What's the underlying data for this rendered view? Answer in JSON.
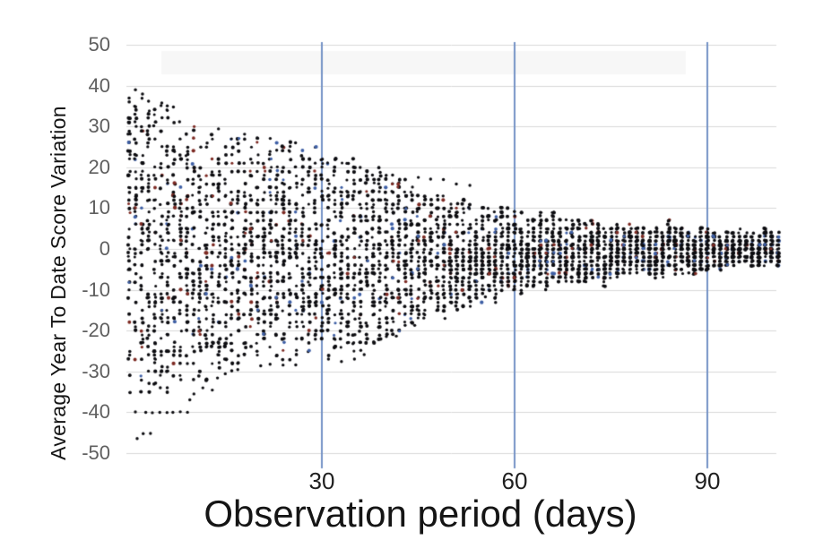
{
  "chart_data": {
    "type": "scatter",
    "title": "",
    "xlabel": "Observation period (days)",
    "ylabel": "Average Year To Date Score Variation",
    "xlim": [
      0,
      101
    ],
    "ylim": [
      -50,
      50
    ],
    "x_ticks": [
      30,
      60,
      90
    ],
    "y_ticks": [
      50,
      40,
      30,
      20,
      10,
      0,
      -10,
      -20,
      -30,
      -40,
      -50
    ],
    "grid": "horizontal light-gray lines every 10 units; vertical blue lines at each x tick",
    "legend": "none",
    "description": "Dense funnel-shaped scatter: one vertical column of integer-valued points per observation day from day ~1 to ~101. Spread shrinks from roughly +39/-47 at the first days to about +4/-4 after 90 days.",
    "envelope": [
      {
        "day": 0,
        "top": 39,
        "bottom": -36.5
      },
      {
        "day": 4,
        "top": 35.5,
        "bottom": -35.5
      },
      {
        "day": 8,
        "top": 32,
        "bottom": -34
      },
      {
        "day": 12,
        "top": 29,
        "bottom": -31.5
      },
      {
        "day": 16,
        "top": 27.5,
        "bottom": -28.5
      },
      {
        "day": 20,
        "top": 26.5,
        "bottom": -26.5
      },
      {
        "day": 25,
        "top": 25.5,
        "bottom": -26
      },
      {
        "day": 30,
        "top": 24.5,
        "bottom": -25.5
      },
      {
        "day": 33,
        "top": 23,
        "bottom": -24
      },
      {
        "day": 36,
        "top": 21.5,
        "bottom": -24.5
      },
      {
        "day": 38,
        "top": 20,
        "bottom": -23
      },
      {
        "day": 40,
        "top": 19.5,
        "bottom": -21.5
      },
      {
        "day": 43,
        "top": 15.5,
        "bottom": -19.5
      },
      {
        "day": 46,
        "top": 14.5,
        "bottom": -18.5
      },
      {
        "day": 50,
        "top": 12.5,
        "bottom": -16.5
      },
      {
        "day": 54,
        "top": 11,
        "bottom": -13.5
      },
      {
        "day": 58,
        "top": 10,
        "bottom": -11.5
      },
      {
        "day": 62,
        "top": 9,
        "bottom": -10
      },
      {
        "day": 66,
        "top": 8.5,
        "bottom": -9.5
      },
      {
        "day": 70,
        "top": 7,
        "bottom": -8.5
      },
      {
        "day": 75,
        "top": 6.2,
        "bottom": -7.2
      },
      {
        "day": 80,
        "top": 5.5,
        "bottom": -6.5
      },
      {
        "day": 85,
        "top": 5.5,
        "bottom": -6
      },
      {
        "day": 90,
        "top": 4.8,
        "bottom": -5.2
      },
      {
        "day": 95,
        "top": 4.2,
        "bottom": -4.6
      },
      {
        "day": 101,
        "top": 3.6,
        "bottom": -4
      }
    ],
    "outliers": [
      [
        1.3,
        -46.4
      ],
      [
        2.2,
        -45.2
      ],
      [
        3.3,
        -45.2
      ],
      [
        1,
        -40
      ],
      [
        2.6,
        -40
      ],
      [
        3.6,
        -40
      ],
      [
        4.7,
        -40
      ],
      [
        5.9,
        -40
      ],
      [
        6.8,
        -40
      ],
      [
        8,
        -40
      ],
      [
        9,
        -40
      ],
      [
        9.5,
        -37
      ],
      [
        10,
        -35.5
      ],
      [
        11.5,
        -34
      ],
      [
        13,
        -34.5
      ],
      [
        13.8,
        -31.5
      ],
      [
        15,
        -30.5
      ],
      [
        17,
        -29.5
      ],
      [
        20.5,
        -28.5
      ],
      [
        22,
        -28.3
      ],
      [
        24,
        -28.3
      ],
      [
        26,
        -28.3
      ],
      [
        31,
        -27
      ],
      [
        33,
        -27.5
      ],
      [
        35,
        -27
      ],
      [
        36.5,
        -25.8
      ],
      [
        38,
        -22.8
      ],
      [
        40,
        -21.5
      ],
      [
        41.5,
        -21.3
      ],
      [
        43,
        -18.7
      ],
      [
        44.5,
        -18.7
      ],
      [
        55.5,
        -11.6
      ],
      [
        57,
        -11
      ],
      [
        74,
        -7
      ],
      [
        76,
        -6.8
      ],
      [
        37,
        19
      ],
      [
        39,
        18.8
      ],
      [
        41,
        18
      ],
      [
        45,
        17.5
      ],
      [
        47,
        17
      ],
      [
        49,
        17
      ],
      [
        51,
        16
      ],
      [
        53,
        15.5
      ],
      [
        14,
        29.5
      ],
      [
        18,
        28
      ],
      [
        22,
        27
      ],
      [
        26,
        26
      ],
      [
        1,
        39
      ],
      [
        2,
        37
      ],
      [
        3,
        36.2
      ],
      [
        5,
        35.8
      ],
      [
        6,
        35
      ],
      [
        7,
        34.8
      ]
    ],
    "density": {
      "columns": 102,
      "base_points_per_column": 44,
      "points_slope": -8
    },
    "seed": 7,
    "colors": {
      "point_black": "#0c0c10",
      "point_red": "#7d2a23",
      "point_blue": "#3e5fa5",
      "gridline": "#d9d9d9",
      "tick_line_blue": "#7593c6",
      "y_tick_text": "#5f5f5f",
      "x_tick_text": "#1f1f1f",
      "title_text": "#151515",
      "watermark_band": "#f7f7f7"
    }
  }
}
